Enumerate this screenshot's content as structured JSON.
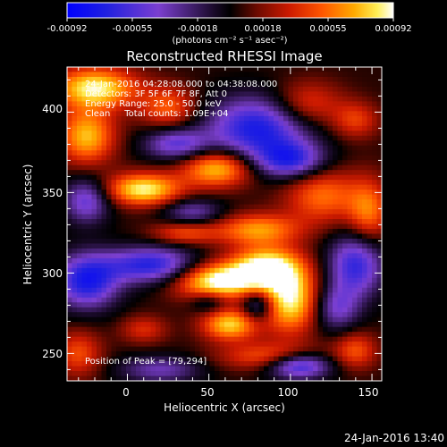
{
  "window": {
    "timestamp": "24-Jan-2016 13:40"
  },
  "colorbar": {
    "ticks": [
      "-0.00092",
      "-0.00055",
      "-0.00018",
      "0.00018",
      "0.00055",
      "0.00092"
    ],
    "unit_label": "(photons cm⁻² s⁻¹ asec⁻²)",
    "range": [
      -0.00092,
      0.00092
    ]
  },
  "colors": {
    "background": "#000000",
    "low": "#1f1fe0",
    "mid_low": "#7b3fd0",
    "mid": "#000000",
    "mid_high": "#cc1a00",
    "high": "#ffffff"
  },
  "chart_data": {
    "type": "heatmap",
    "title": "Reconstructed RHESSI Image",
    "xlabel": "Heliocentric X (arcsec)",
    "ylabel": "Heliocentric Y (arcsec)",
    "xlim": [
      -37,
      156
    ],
    "ylim": [
      233,
      428
    ],
    "xticks": [
      "0",
      "50",
      "100",
      "150"
    ],
    "xtick_values": [
      0,
      50,
      100,
      150
    ],
    "yticks": [
      "250",
      "300",
      "350",
      "400"
    ],
    "ytick_values": [
      250,
      300,
      350,
      400
    ],
    "annotations": [
      "24-Jan-2016 04:28:08.000 to 04:38:08.000",
      "Detectors: 3F 5F 6F 7F 8F, Att 0",
      "Energy Range: 25.0 - 50.0 keV",
      "Clean     Total counts: 1.09E+04"
    ],
    "peak_label": "Position of Peak = [79,294]",
    "peak": [
      79,
      294
    ],
    "blobs": [
      {
        "x": 55,
        "y": 295,
        "sx": 18,
        "sy": 8,
        "amp": 1.0
      },
      {
        "x": 85,
        "y": 303,
        "sx": 15,
        "sy": 9,
        "amp": 1.0
      },
      {
        "x": 100,
        "y": 283,
        "sx": 12,
        "sy": 14,
        "amp": 0.9
      },
      {
        "x": 63,
        "y": 268,
        "sx": 12,
        "sy": 7,
        "amp": 0.8
      },
      {
        "x": 90,
        "y": 248,
        "sx": 22,
        "sy": 6,
        "amp": 0.55
      },
      {
        "x": 140,
        "y": 252,
        "sx": 9,
        "sy": 8,
        "amp": 0.45
      },
      {
        "x": -20,
        "y": 415,
        "sx": 18,
        "sy": 9,
        "amp": 0.9
      },
      {
        "x": -25,
        "y": 385,
        "sx": 12,
        "sy": 12,
        "amp": 0.75
      },
      {
        "x": 25,
        "y": 403,
        "sx": 12,
        "sy": 9,
        "amp": 0.5
      },
      {
        "x": 10,
        "y": 352,
        "sx": 16,
        "sy": 7,
        "amp": 0.9
      },
      {
        "x": 55,
        "y": 365,
        "sx": 15,
        "sy": 8,
        "amp": 0.8
      },
      {
        "x": 80,
        "y": 327,
        "sx": 18,
        "sy": 7,
        "amp": 0.65
      },
      {
        "x": 35,
        "y": 325,
        "sx": 14,
        "sy": 5,
        "amp": 0.45
      },
      {
        "x": 120,
        "y": 348,
        "sx": 16,
        "sy": 12,
        "amp": 0.55
      },
      {
        "x": 148,
        "y": 338,
        "sx": 9,
        "sy": 14,
        "amp": 0.55
      },
      {
        "x": 140,
        "y": 395,
        "sx": 10,
        "sy": 8,
        "amp": 0.4
      },
      {
        "x": 110,
        "y": 405,
        "sx": 15,
        "sy": 10,
        "amp": 0.45
      },
      {
        "x": -30,
        "y": 250,
        "sx": 10,
        "sy": 10,
        "amp": 0.45
      },
      {
        "x": 10,
        "y": 265,
        "sx": 10,
        "sy": 6,
        "amp": 0.35
      },
      {
        "x": -25,
        "y": 295,
        "sx": 14,
        "sy": 12,
        "amp": -0.85
      },
      {
        "x": 15,
        "y": 305,
        "sx": 20,
        "sy": 8,
        "amp": -0.8
      },
      {
        "x": 80,
        "y": 390,
        "sx": 22,
        "sy": 14,
        "amp": -0.85
      },
      {
        "x": 100,
        "y": 370,
        "sx": 15,
        "sy": 8,
        "amp": -0.7
      },
      {
        "x": 30,
        "y": 380,
        "sx": 14,
        "sy": 7,
        "amp": -0.6
      },
      {
        "x": -25,
        "y": 345,
        "sx": 10,
        "sy": 10,
        "amp": -0.6
      },
      {
        "x": 40,
        "y": 338,
        "sx": 13,
        "sy": 6,
        "amp": -0.45
      },
      {
        "x": 140,
        "y": 305,
        "sx": 12,
        "sy": 14,
        "amp": -0.75
      },
      {
        "x": 128,
        "y": 278,
        "sx": 10,
        "sy": 10,
        "amp": -0.5
      },
      {
        "x": 105,
        "y": 243,
        "sx": 14,
        "sy": 6,
        "amp": -0.9
      },
      {
        "x": 20,
        "y": 240,
        "sx": 18,
        "sy": 6,
        "amp": -0.45
      },
      {
        "x": 80,
        "y": 280,
        "sx": 7,
        "sy": 7,
        "amp": -0.55
      },
      {
        "x": 50,
        "y": 282,
        "sx": 8,
        "sy": 5,
        "amp": -0.35
      }
    ]
  }
}
